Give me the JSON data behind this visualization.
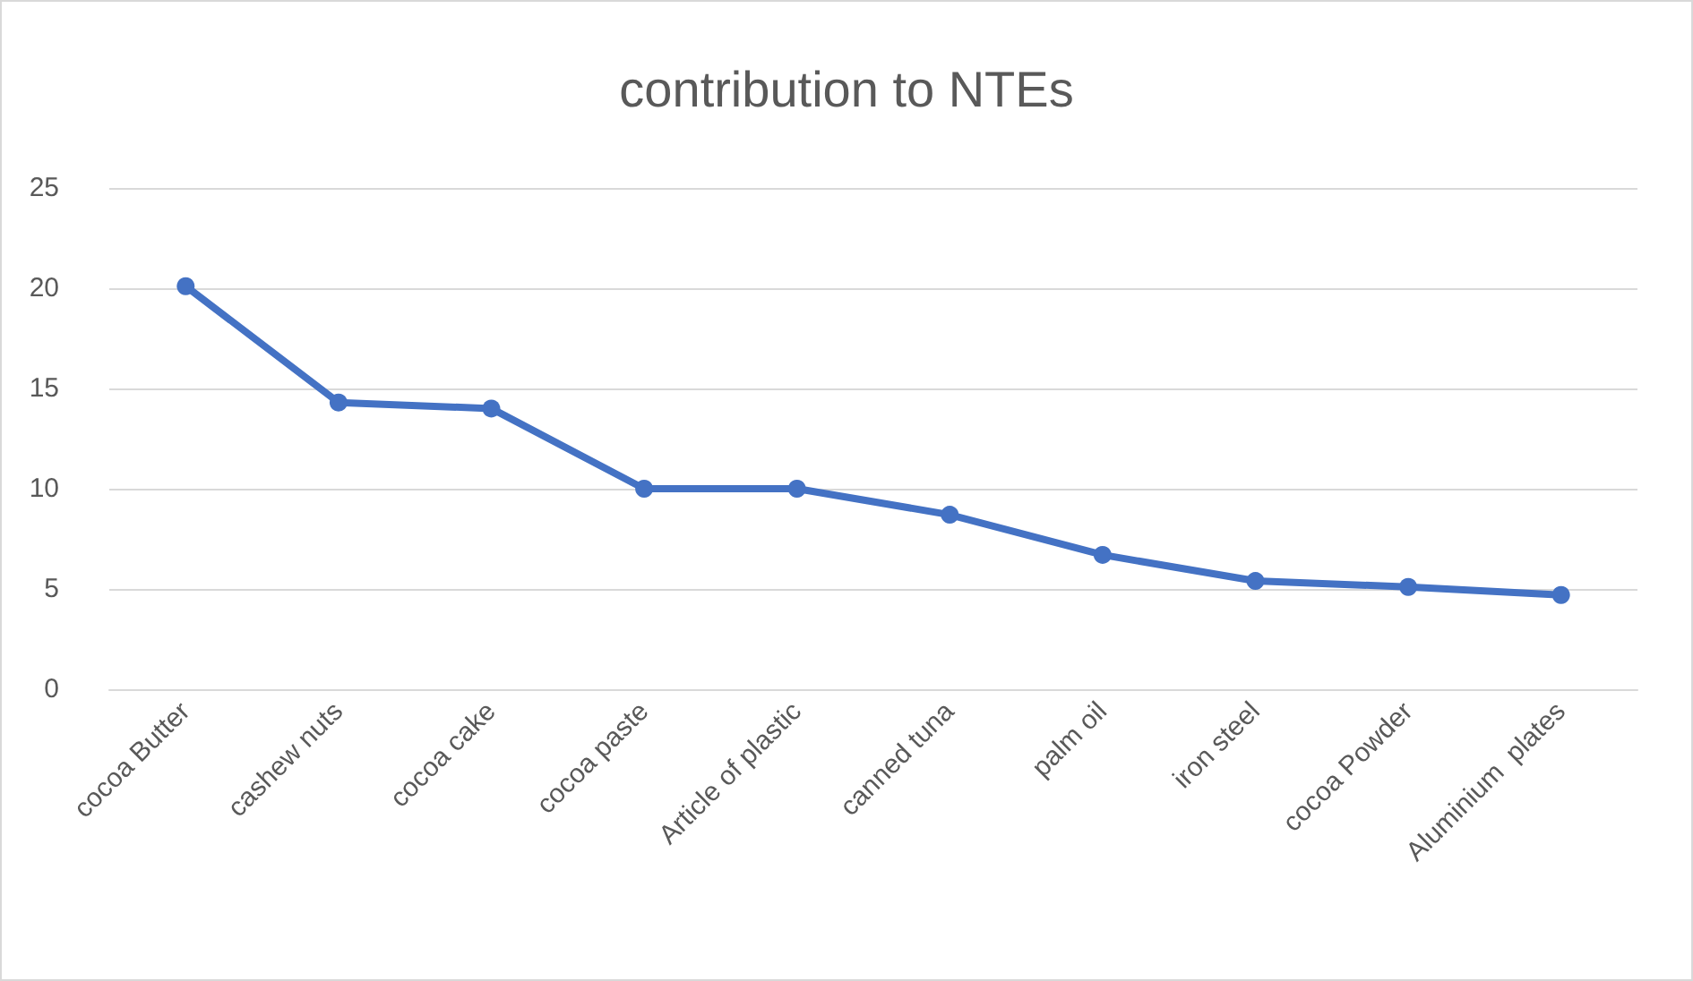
{
  "chart_data": {
    "type": "line",
    "title": "contribution to NTEs",
    "categories": [
      "cocoa Butter",
      "cashew nuts",
      "cocoa cake",
      "cocoa paste",
      "Article of plastic",
      "canned tuna",
      "palm oil",
      "iron steel",
      "cocoa Powder",
      "Aluminium  plates"
    ],
    "series": [
      {
        "color": "#4472c4",
        "values": [
          20.1,
          14.3,
          14.0,
          10.0,
          10.0,
          8.7,
          6.7,
          5.4,
          5.1,
          4.7
        ]
      }
    ],
    "ylim": [
      0,
      25
    ],
    "yticks": [
      0,
      5,
      10,
      15,
      20,
      25
    ],
    "grid": "y",
    "marker": "circle",
    "line_style": "solid"
  }
}
